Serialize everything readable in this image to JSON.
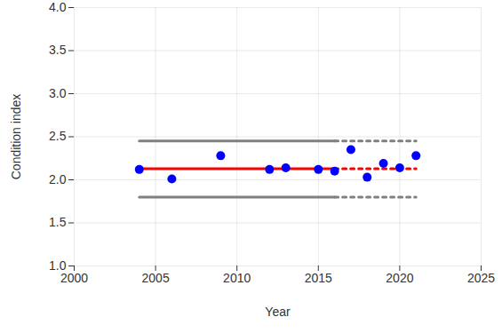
{
  "chart_data": {
    "type": "scatter",
    "xlabel": "Year",
    "ylabel": "Condition index",
    "xlim": [
      2000,
      2025
    ],
    "xticks": [
      2000,
      2005,
      2010,
      2015,
      2020,
      2025
    ],
    "ylim": [
      1.0,
      4.0
    ],
    "yticks": [
      {
        "value": 1.0,
        "label": "1.0"
      },
      {
        "value": 1.5,
        "label": "1.5"
      },
      {
        "value": 2.0,
        "label": "2.0"
      },
      {
        "value": 2.5,
        "label": "2.5"
      },
      {
        "value": 3.0,
        "label": "3.0"
      },
      {
        "value": 3.5,
        "label": "3.5"
      },
      {
        "value": 4.0,
        "label": "4.0"
      }
    ],
    "grid": true,
    "series": [
      {
        "type": "line",
        "color": "#808080",
        "line_style": "solid",
        "x": [
          2004,
          2016
        ],
        "values": [
          2.45,
          2.45
        ]
      },
      {
        "type": "line",
        "color": "#808080",
        "line_style": "dashed",
        "x": [
          2016,
          2021
        ],
        "values": [
          2.45,
          2.45
        ]
      },
      {
        "type": "line",
        "color": "#808080",
        "line_style": "solid",
        "x": [
          2004,
          2016
        ],
        "values": [
          1.8,
          1.8
        ]
      },
      {
        "type": "line",
        "color": "#808080",
        "line_style": "dashed",
        "x": [
          2016,
          2021
        ],
        "values": [
          1.8,
          1.8
        ]
      },
      {
        "type": "line",
        "color": "#ff0000",
        "line_style": "solid",
        "x": [
          2004,
          2016
        ],
        "values": [
          2.13,
          2.13
        ]
      },
      {
        "type": "line",
        "color": "#ff0000",
        "line_style": "dashed",
        "x": [
          2016,
          2021
        ],
        "values": [
          2.13,
          2.13
        ]
      },
      {
        "type": "scatter",
        "color": "#0000ff",
        "marker": "circle",
        "x": [
          2004,
          2006,
          2009,
          2012,
          2013,
          2015,
          2016,
          2017,
          2018,
          2019,
          2020,
          2021
        ],
        "values": [
          2.12,
          2.01,
          2.28,
          2.12,
          2.14,
          2.12,
          2.1,
          2.35,
          2.03,
          2.19,
          2.14,
          2.28
        ]
      }
    ]
  }
}
